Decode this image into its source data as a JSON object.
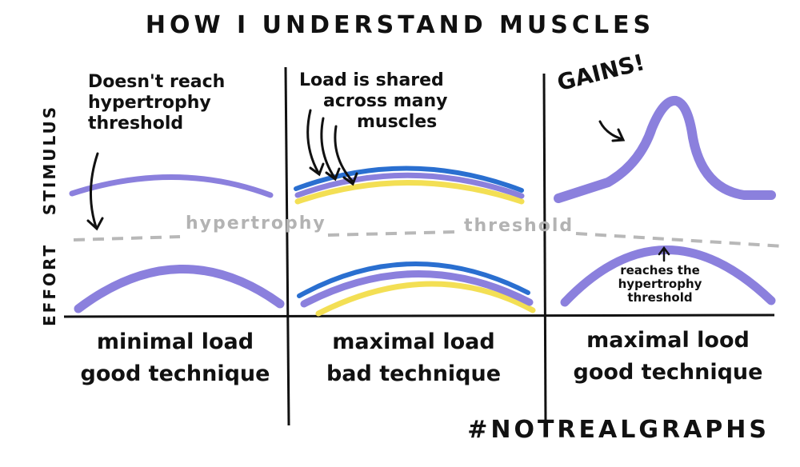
{
  "title": "HOW I UNDERSTAND MUSCLES",
  "hashtag": "#NOTREALGRAPHS",
  "axis": {
    "stimulus": "STIMULUS",
    "effort": "EFFORT"
  },
  "threshold": {
    "left_word": "hypertrophy",
    "right_word": "threshold"
  },
  "panels": [
    {
      "note": "Doesn't reach hypertrophy threshold",
      "caption_line1": "minimal load",
      "caption_line2": "good technique"
    },
    {
      "note_line1": "Load is shared",
      "note_line2": "across many",
      "note_line3": "muscles",
      "caption_line1": "maximal load",
      "caption_line2": "bad technique"
    },
    {
      "note": "GAINS!",
      "annotation_line1": "reaches the",
      "annotation_line2": "hypertrophy",
      "annotation_line3": "threshold",
      "caption_line1": "maximal lood",
      "caption_line2": "good technique"
    }
  ],
  "colors": {
    "purple": "#8b80dd",
    "blue": "#2a6fd0",
    "yellow": "#f3df54",
    "threshold": "#b8b8b8",
    "ink": "#111111"
  }
}
